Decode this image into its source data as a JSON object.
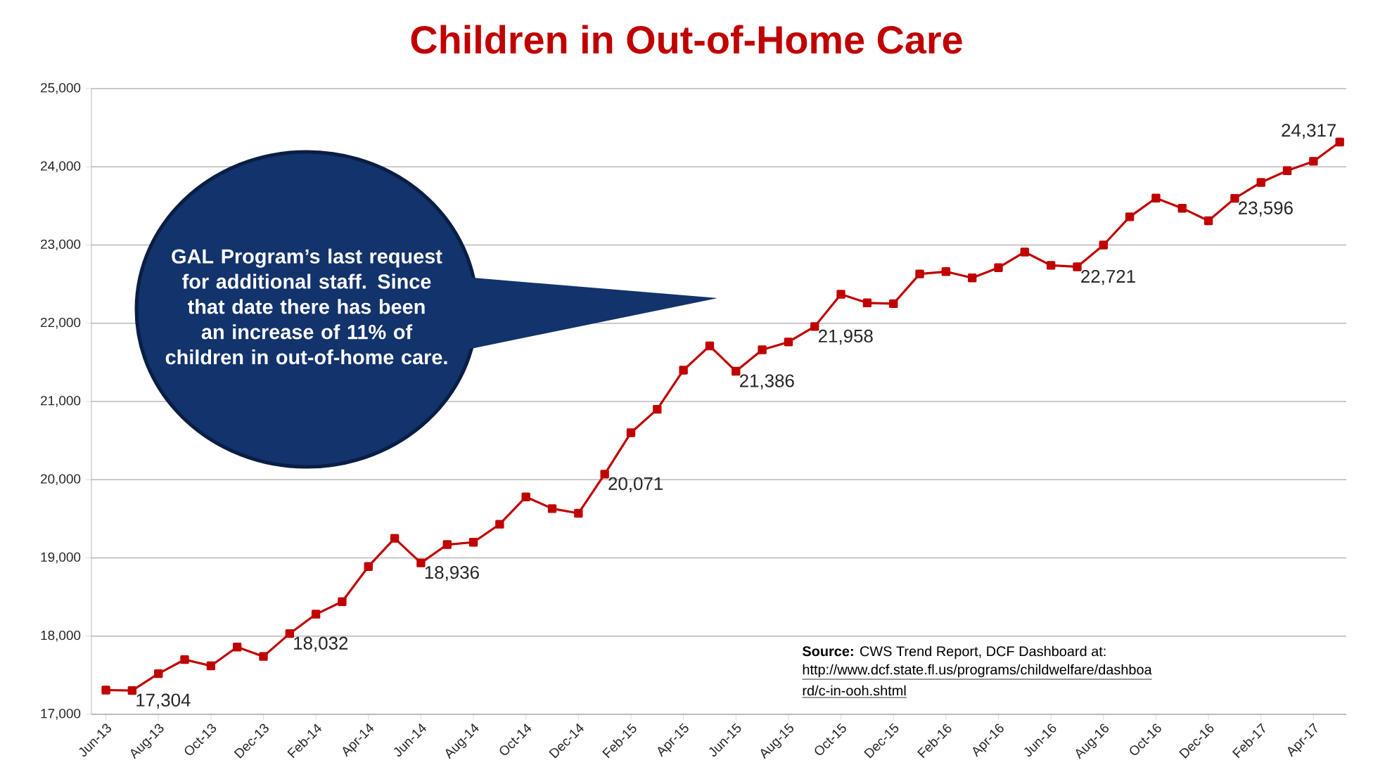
{
  "chart_data": {
    "type": "line",
    "title": "Children in Out-of-Home Care",
    "categories": [
      "Jun-13",
      null,
      "Aug-13",
      null,
      "Oct-13",
      null,
      "Dec-13",
      null,
      "Feb-14",
      null,
      "Apr-14",
      null,
      "Jun-14",
      null,
      "Aug-14",
      null,
      "Oct-14",
      null,
      "Dec-14",
      null,
      "Feb-15",
      null,
      "Apr-15",
      null,
      "Jun-15",
      null,
      "Aug-15",
      null,
      "Oct-15",
      null,
      "Dec-15",
      null,
      "Feb-16",
      null,
      "Apr-16",
      null,
      "Jun-16",
      null,
      "Aug-16",
      null,
      "Oct-16",
      null,
      "Dec-16",
      null,
      "Feb-17",
      null,
      "Apr-17",
      null
    ],
    "series": [
      {
        "color": "#c00000",
        "values": [
          17310,
          17304,
          17520,
          17700,
          17620,
          17860,
          17740,
          18032,
          18280,
          18440,
          18890,
          19250,
          18936,
          19170,
          19200,
          19430,
          19780,
          19630,
          19570,
          20071,
          20600,
          20900,
          21400,
          21710,
          21386,
          21660,
          21760,
          21958,
          22370,
          22260,
          22250,
          22630,
          22660,
          22580,
          22710,
          22910,
          22740,
          22721,
          23000,
          23360,
          23600,
          23470,
          23310,
          23596,
          23800,
          23950,
          24070,
          24317
        ],
        "value_labels": [
          null,
          "17,304",
          null,
          null,
          null,
          null,
          null,
          "18,032",
          null,
          null,
          null,
          null,
          "18,936",
          null,
          null,
          null,
          null,
          null,
          null,
          "20,071",
          null,
          null,
          null,
          null,
          "21,386",
          null,
          null,
          "21,958",
          null,
          null,
          null,
          null,
          null,
          null,
          null,
          null,
          null,
          "22,721",
          null,
          null,
          null,
          null,
          null,
          "23,596",
          null,
          null,
          null,
          "24,317"
        ]
      }
    ],
    "ylim": [
      17000,
      25000
    ],
    "yticks": [
      {
        "value": 17000,
        "label": "17,000"
      },
      {
        "value": 18000,
        "label": "18,000"
      },
      {
        "value": 19000,
        "label": "19,000"
      },
      {
        "value": 20000,
        "label": "20,000"
      },
      {
        "value": 21000,
        "label": "21,000"
      },
      {
        "value": 22000,
        "label": "22,000"
      },
      {
        "value": 23000,
        "label": "23,000"
      },
      {
        "value": 24000,
        "label": "24,000"
      },
      {
        "value": 25000,
        "label": "25,000"
      }
    ],
    "grid": "y",
    "marker": "square",
    "line_style": "solid",
    "annotations": [
      "GAL Program’s last request for additional staff.  Since that date there has been an increase of 11% of children in out-of-home care.",
      "**Source:**  CWS Trend Report, DCF Dashboard at:",
      "http://www.dcf.state.fl.us/programs/childwelfare/dashboa",
      "rd/c-in-ooh.shtml"
    ]
  }
}
